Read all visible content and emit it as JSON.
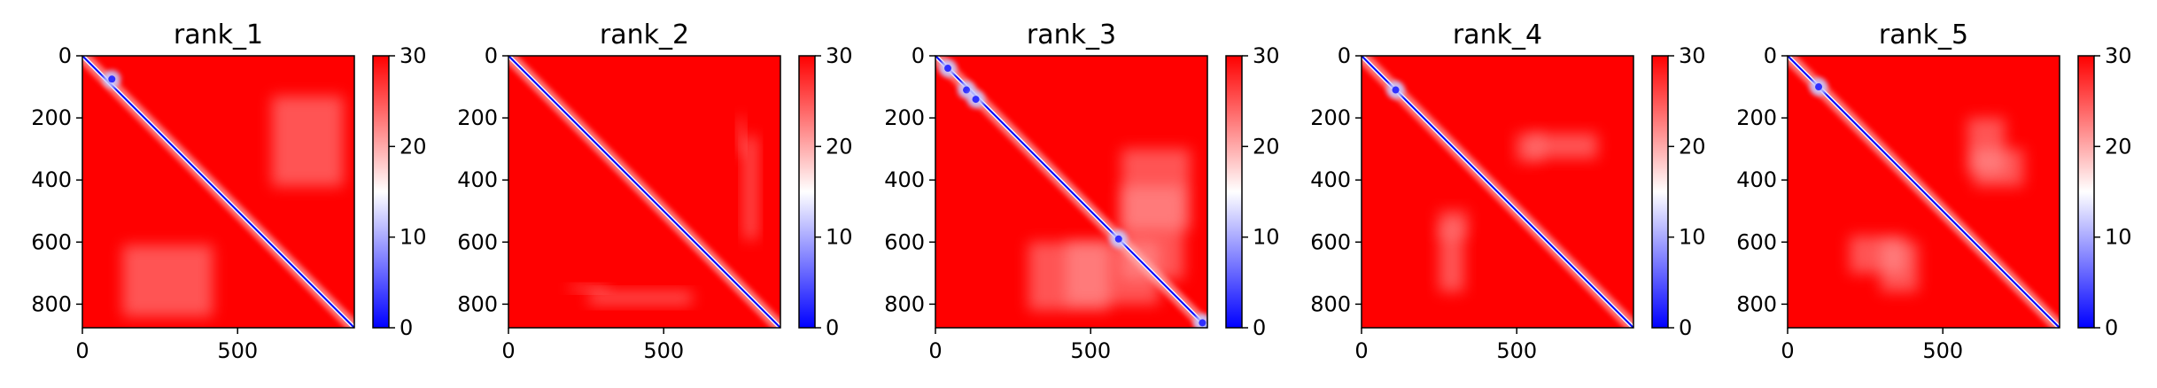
{
  "chart_data": [
    {
      "type": "heatmap",
      "title": "rank_1",
      "x_ticks": [
        0,
        500
      ],
      "y_ticks": [
        0,
        200,
        400,
        600,
        800
      ],
      "xlim": [
        0,
        876
      ],
      "ylim": [
        876,
        0
      ],
      "colorbar": {
        "ticks": [
          0,
          10,
          20,
          30
        ],
        "range": [
          0,
          30
        ],
        "colors": [
          "#0000ff",
          "#ffffff",
          "#ff0000"
        ]
      },
      "diagonal_value": 0,
      "background_value": 30,
      "light_regions": [
        [
          130,
          610,
          420,
          840
        ]
      ],
      "blue_spots": [
        [
          95,
          75
        ]
      ]
    },
    {
      "type": "heatmap",
      "title": "rank_2",
      "x_ticks": [
        0,
        500
      ],
      "y_ticks": [
        0,
        200,
        400,
        600,
        800
      ],
      "xlim": [
        0,
        876
      ],
      "ylim": [
        876,
        0
      ],
      "colorbar": {
        "ticks": [
          0,
          10,
          20,
          30
        ],
        "range": [
          0,
          30
        ],
        "colors": [
          "#0000ff",
          "#ffffff",
          "#ff0000"
        ]
      },
      "diagonal_value": 0,
      "background_value": 30,
      "light_regions": [
        [
          260,
          760,
          590,
          800
        ],
        [
          740,
          200,
          760,
          320
        ]
      ],
      "blue_spots": []
    },
    {
      "type": "heatmap",
      "title": "rank_3",
      "x_ticks": [
        0,
        500
      ],
      "y_ticks": [
        0,
        200,
        400,
        600,
        800
      ],
      "xlim": [
        0,
        876
      ],
      "ylim": [
        876,
        0
      ],
      "colorbar": {
        "ticks": [
          0,
          10,
          20,
          30
        ],
        "range": [
          0,
          30
        ],
        "colors": [
          "#0000ff",
          "#ffffff",
          "#ff0000"
        ]
      },
      "diagonal_value": 0,
      "background_value": 30,
      "light_regions": [
        [
          300,
          820,
          560,
          600
        ],
        [
          600,
          720,
          800,
          420
        ]
      ],
      "blue_spots": [
        [
          40,
          40
        ],
        [
          100,
          110
        ],
        [
          130,
          140
        ],
        [
          590,
          590
        ],
        [
          860,
          860
        ]
      ]
    },
    {
      "type": "heatmap",
      "title": "rank_4",
      "x_ticks": [
        0,
        500
      ],
      "y_ticks": [
        0,
        200,
        400,
        600,
        800
      ],
      "xlim": [
        0,
        876
      ],
      "ylim": [
        876,
        0
      ],
      "colorbar": {
        "ticks": [
          0,
          10,
          20,
          30
        ],
        "range": [
          0,
          30
        ],
        "colors": [
          "#0000ff",
          "#ffffff",
          "#ff0000"
        ]
      },
      "diagonal_value": 0,
      "background_value": 30,
      "light_regions": [
        [
          550,
          250,
          760,
          330
        ],
        [
          250,
          500,
          340,
          580
        ]
      ],
      "blue_spots": [
        [
          110,
          110
        ]
      ]
    },
    {
      "type": "heatmap",
      "title": "rank_5",
      "x_ticks": [
        0,
        500
      ],
      "y_ticks": [
        0,
        200,
        400,
        600,
        800
      ],
      "xlim": [
        0,
        876
      ],
      "ylim": [
        876,
        0
      ],
      "colorbar": {
        "ticks": [
          0,
          10,
          20,
          30
        ],
        "range": [
          0,
          30
        ],
        "colors": [
          "#0000ff",
          "#ffffff",
          "#ff0000"
        ]
      },
      "diagonal_value": 0,
      "background_value": 30,
      "light_regions": [
        [
          200,
          580,
          380,
          700
        ],
        [
          600,
          300,
          760,
          420
        ]
      ],
      "blue_spots": [
        [
          100,
          100
        ]
      ]
    }
  ]
}
